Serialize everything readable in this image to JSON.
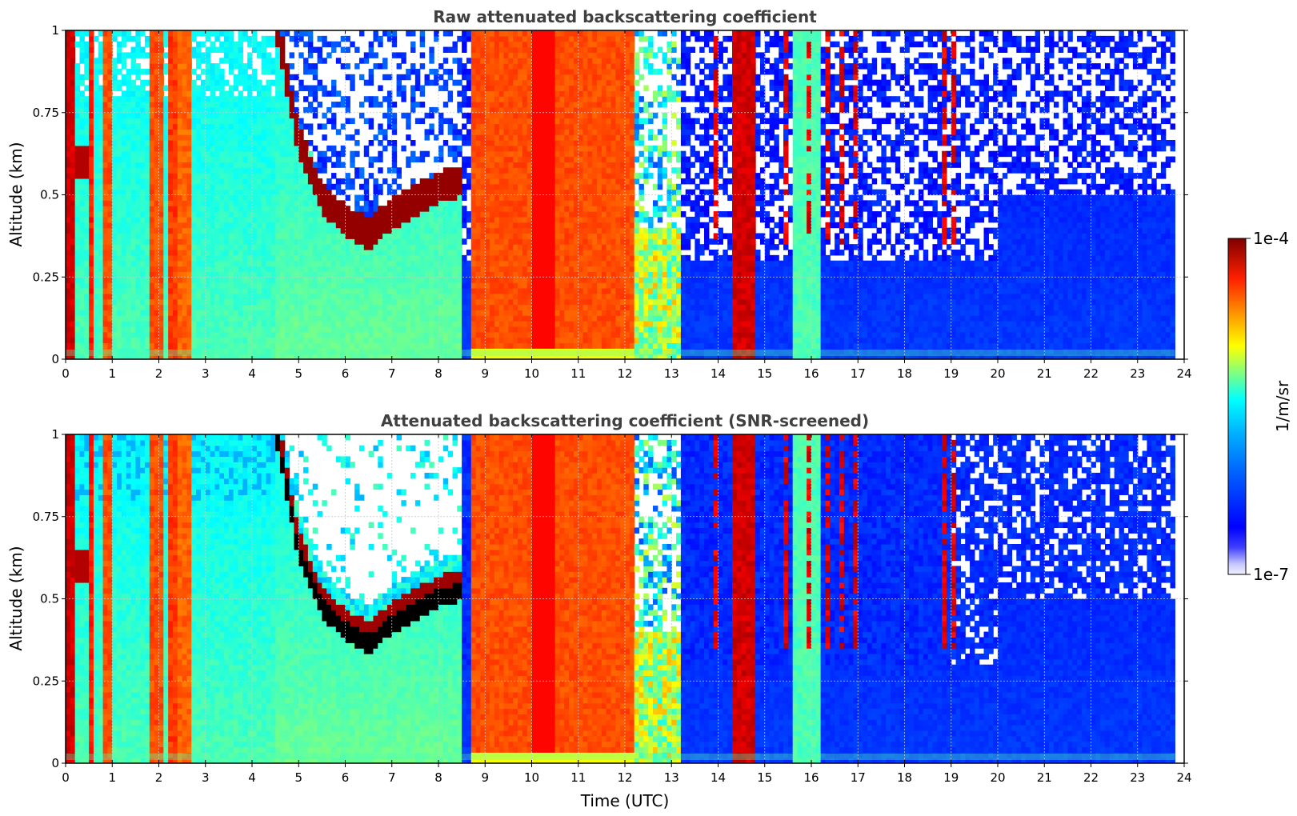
{
  "chart_data": [
    {
      "type": "heatmap",
      "title": "Raw attenuated backscattering coefficient",
      "xlabel": "",
      "ylabel": "Altitude (km)",
      "xlim": [
        0,
        24
      ],
      "ylim": [
        0,
        1
      ],
      "x_ticks": [
        "0",
        "1",
        "2",
        "3",
        "4",
        "5",
        "6",
        "7",
        "8",
        "9",
        "10",
        "11",
        "12",
        "13",
        "14",
        "15",
        "16",
        "17",
        "18",
        "19",
        "20",
        "21",
        "22",
        "23",
        "24"
      ],
      "y_ticks": [
        "0",
        "0.25",
        "0.5",
        "0.75",
        "1"
      ],
      "grid": true,
      "colormap": "jet",
      "color_scale": "log",
      "color_range": [
        1e-07,
        0.0001
      ],
      "layers": [
        {
          "type": "cloud_layer",
          "time": [
            4.5,
            5.0,
            5.5,
            6.0,
            6.5,
            7.0,
            7.5,
            8.0,
            8.5
          ],
          "base_km": [
            1.0,
            0.62,
            0.45,
            0.38,
            0.34,
            0.4,
            0.44,
            0.48,
            0.5
          ]
        },
        {
          "type": "fog_or_precip",
          "time_range": [
            8.7,
            12.2
          ],
          "height_top_km": 1.0
        },
        {
          "type": "precip_column",
          "time_range": [
            14.3,
            14.7
          ],
          "height_top_km": 1.0
        },
        {
          "type": "precip_column",
          "time_range": [
            1.9,
            2.6
          ],
          "height_top_km": 1.0
        }
      ]
    },
    {
      "type": "heatmap",
      "title": "Attenuated backscattering coefficient (SNR-screened)",
      "xlabel": "Time (UTC)",
      "ylabel": "Altitude (km)",
      "xlim": [
        0,
        24
      ],
      "ylim": [
        0,
        1
      ],
      "x_ticks": [
        "0",
        "1",
        "2",
        "3",
        "4",
        "5",
        "6",
        "7",
        "8",
        "9",
        "10",
        "11",
        "12",
        "13",
        "14",
        "15",
        "16",
        "17",
        "18",
        "19",
        "20",
        "21",
        "22",
        "23",
        "24"
      ],
      "y_ticks": [
        "0",
        "0.25",
        "0.5",
        "0.75",
        "1"
      ],
      "grid": true,
      "colormap": "jet",
      "color_scale": "log",
      "color_range": [
        1e-07,
        0.0001
      ]
    }
  ],
  "colorbar": {
    "max_label": "1e-4",
    "min_label": "1e-7",
    "unit_label": "1/m/sr",
    "colors": [
      "#00007f",
      "#0000ff",
      "#0080ff",
      "#00ffff",
      "#80ff80",
      "#ffff00",
      "#ff8000",
      "#ff0000",
      "#7f0000"
    ]
  }
}
